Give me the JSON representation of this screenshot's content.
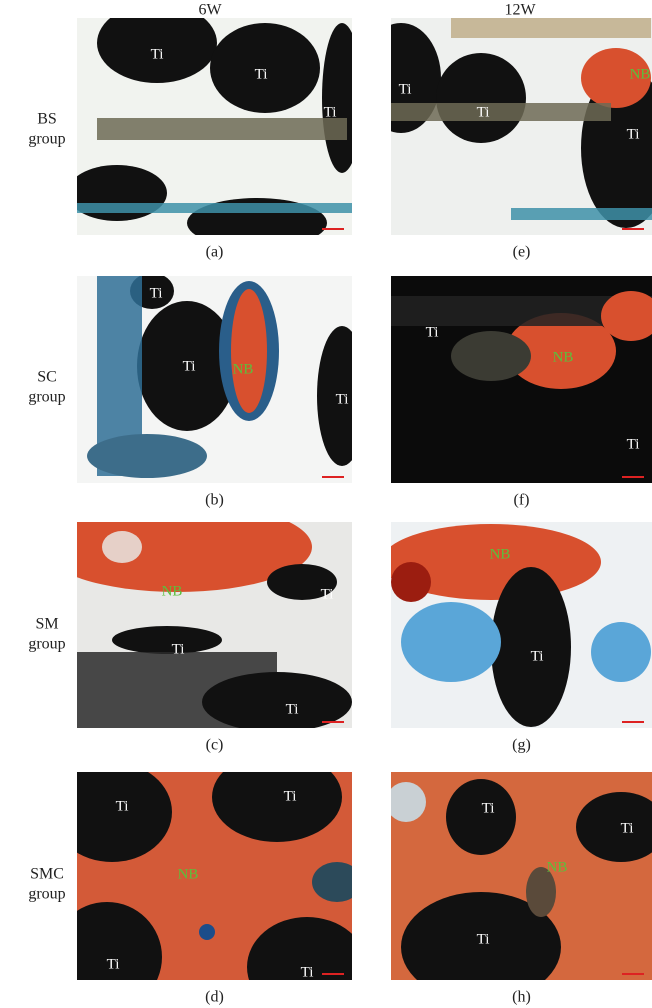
{
  "columns": [
    "6W",
    "12W"
  ],
  "rows": [
    {
      "label": [
        "BS",
        "group"
      ],
      "panels": [
        {
          "caption": "(a)",
          "labels": [
            "Ti",
            "Ti",
            "Ti"
          ]
        },
        {
          "caption": "(e)",
          "labels": [
            "Ti",
            "Ti",
            "Ti",
            "NB"
          ]
        }
      ]
    },
    {
      "label": [
        "SC",
        "group"
      ],
      "panels": [
        {
          "caption": "(b)",
          "labels": [
            "Ti",
            "Ti",
            "Ti",
            "NB"
          ]
        },
        {
          "caption": "(f)",
          "labels": [
            "Ti",
            "NB",
            "Ti"
          ]
        }
      ]
    },
    {
      "label": [
        "SM",
        "group"
      ],
      "panels": [
        {
          "caption": "(c)",
          "labels": [
            "NB",
            "Ti",
            "Ti",
            "Ti"
          ]
        },
        {
          "caption": "(g)",
          "labels": [
            "NB",
            "Ti"
          ]
        }
      ]
    },
    {
      "label": [
        "SMC",
        "group"
      ],
      "panels": [
        {
          "caption": "(d)",
          "labels": [
            "Ti",
            "Ti",
            "NB",
            "Ti",
            "Ti"
          ]
        },
        {
          "caption": "(h)",
          "labels": [
            "Ti",
            "Ti",
            "NB",
            "Ti"
          ]
        }
      ]
    }
  ]
}
